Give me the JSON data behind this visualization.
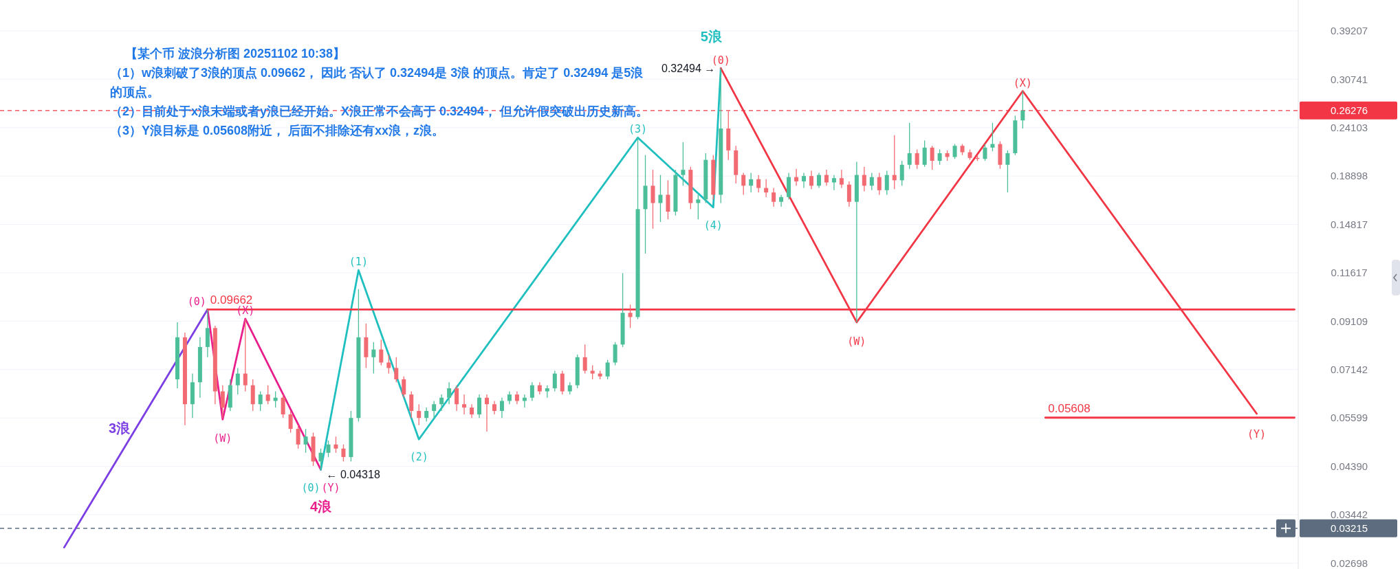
{
  "chart_data": {
    "type": "candlestick",
    "title": "【某个币 波浪分析图 20251102 10:38】",
    "categories": [
      null,
      null,
      null,
      null,
      null,
      null,
      null,
      null,
      null,
      null,
      null,
      null,
      null,
      null,
      null,
      null,
      null,
      null,
      null,
      null,
      null,
      null,
      null,
      null,
      null,
      null,
      null,
      null,
      null,
      null,
      null,
      null,
      null,
      null,
      null,
      null,
      null,
      null,
      null,
      null,
      null,
      null,
      null,
      null,
      null,
      null,
      null,
      null,
      null,
      null,
      null,
      null,
      null,
      null,
      null,
      null,
      null,
      null,
      null,
      null,
      null,
      null,
      null,
      null,
      null,
      null,
      null,
      null,
      null,
      null,
      null,
      null,
      null,
      null,
      null,
      null,
      null,
      null,
      null,
      null,
      null,
      null,
      null,
      null,
      null,
      null,
      null,
      null,
      null,
      null,
      null,
      null,
      null,
      null,
      null,
      null,
      null,
      null,
      null,
      null,
      null,
      null,
      null,
      null,
      null,
      null,
      null,
      null,
      null,
      null,
      null,
      null,
      null,
      null,
      null,
      null,
      null,
      null,
      null,
      null,
      null,
      null,
      null,
      null,
      null,
      null,
      null,
      null,
      null,
      null,
      null,
      null,
      null,
      null,
      null,
      null,
      null,
      null,
      null,
      null,
      null,
      null,
      null,
      null,
      null,
      null,
      null,
      null,
      null,
      null,
      null,
      null,
      null,
      null,
      null,
      null,
      null,
      null,
      null,
      null,
      null,
      null,
      null,
      null,
      null,
      null,
      null,
      null,
      null,
      null,
      null,
      null
    ],
    "ohlc": [
      null,
      null,
      null,
      null,
      null,
      null,
      null,
      null,
      null,
      null,
      null,
      null,
      null,
      null,
      null,
      null,
      null,
      null,
      null,
      null,
      null,
      null,
      null,
      [
        0.068,
        0.0906,
        0.065,
        0.084
      ],
      [
        0.084,
        0.086,
        0.054,
        0.06
      ],
      [
        0.06,
        0.07,
        0.056,
        0.067
      ],
      [
        0.067,
        0.084,
        0.062,
        0.08
      ],
      [
        0.08,
        0.0966,
        0.076,
        0.088
      ],
      [
        0.088,
        0.089,
        0.06,
        0.064
      ],
      [
        0.064,
        0.066,
        0.056,
        0.059
      ],
      [
        0.059,
        0.068,
        0.058,
        0.066
      ],
      [
        0.066,
        0.072,
        0.063,
        0.07
      ],
      [
        0.07,
        0.092,
        0.064,
        0.066
      ],
      [
        0.066,
        0.068,
        0.058,
        0.06
      ],
      [
        0.06,
        0.064,
        0.058,
        0.063
      ],
      [
        0.063,
        0.066,
        0.06,
        0.061
      ],
      [
        0.061,
        0.064,
        0.059,
        0.062
      ],
      [
        0.062,
        0.063,
        0.056,
        0.057
      ],
      [
        0.057,
        0.058,
        0.052,
        0.053
      ],
      [
        0.053,
        0.054,
        0.048,
        0.049
      ],
      [
        0.049,
        0.053,
        0.047,
        0.051
      ],
      [
        0.051,
        0.052,
        0.044,
        0.045
      ],
      [
        0.045,
        0.048,
        0.04318,
        0.047
      ],
      [
        0.047,
        0.05,
        0.046,
        0.049
      ],
      [
        0.049,
        0.051,
        0.047,
        0.048
      ],
      [
        0.048,
        0.049,
        0.045,
        0.046
      ],
      [
        0.046,
        0.058,
        0.045,
        0.056
      ],
      [
        0.056,
        0.107,
        0.055,
        0.084
      ],
      [
        0.084,
        0.09,
        0.072,
        0.076
      ],
      [
        0.076,
        0.082,
        0.07,
        0.079
      ],
      [
        0.079,
        0.083,
        0.073,
        0.074
      ],
      [
        0.074,
        0.077,
        0.07,
        0.072
      ],
      [
        0.072,
        0.076,
        0.067,
        0.068
      ],
      [
        0.068,
        0.069,
        0.062,
        0.063
      ],
      [
        0.063,
        0.064,
        0.056,
        0.058
      ],
      [
        0.058,
        0.06,
        0.054,
        0.056
      ],
      [
        0.056,
        0.059,
        0.055,
        0.058
      ],
      [
        0.058,
        0.061,
        0.056,
        0.06
      ],
      [
        0.06,
        0.063,
        0.058,
        0.062
      ],
      [
        0.062,
        0.067,
        0.06,
        0.065
      ],
      [
        0.065,
        0.066,
        0.058,
        0.06
      ],
      [
        0.06,
        0.063,
        0.057,
        0.059
      ],
      [
        0.059,
        0.06,
        0.056,
        0.057
      ],
      [
        0.057,
        0.063,
        0.056,
        0.062
      ],
      [
        0.062,
        0.063,
        0.0523,
        0.06
      ],
      [
        0.06,
        0.061,
        0.057,
        0.058
      ],
      [
        0.058,
        0.062,
        0.056,
        0.061
      ],
      [
        0.061,
        0.064,
        0.06,
        0.063
      ],
      [
        0.063,
        0.064,
        0.06,
        0.061
      ],
      [
        0.061,
        0.063,
        0.059,
        0.062
      ],
      [
        0.062,
        0.067,
        0.061,
        0.066
      ],
      [
        0.066,
        0.067,
        0.063,
        0.064
      ],
      [
        0.064,
        0.066,
        0.062,
        0.065
      ],
      [
        0.065,
        0.071,
        0.064,
        0.07
      ],
      [
        0.07,
        0.071,
        0.063,
        0.064
      ],
      [
        0.064,
        0.067,
        0.063,
        0.066
      ],
      [
        0.066,
        0.077,
        0.065,
        0.076
      ],
      [
        0.076,
        0.081,
        0.07,
        0.071
      ],
      [
        0.071,
        0.073,
        0.068,
        0.07
      ],
      [
        0.07,
        0.071,
        0.068,
        0.069
      ],
      [
        0.069,
        0.075,
        0.068,
        0.074
      ],
      [
        0.074,
        0.082,
        0.073,
        0.081
      ],
      [
        0.081,
        0.116,
        0.08,
        0.095
      ],
      [
        0.095,
        0.099,
        0.088,
        0.093
      ],
      [
        0.093,
        0.2293,
        0.092,
        0.16
      ],
      [
        0.16,
        0.21,
        0.128,
        0.18
      ],
      [
        0.18,
        0.195,
        0.145,
        0.165
      ],
      [
        0.165,
        0.19,
        0.15,
        0.172
      ],
      [
        0.172,
        0.185,
        0.152,
        0.158
      ],
      [
        0.158,
        0.195,
        0.155,
        0.19
      ],
      [
        0.19,
        0.224,
        0.18,
        0.195
      ],
      [
        0.195,
        0.198,
        0.16,
        0.165
      ],
      [
        0.165,
        0.172,
        0.152,
        0.168
      ],
      [
        0.168,
        0.212,
        0.165,
        0.205
      ],
      [
        0.205,
        0.21,
        0.168,
        0.172
      ],
      [
        0.172,
        0.32494,
        0.165,
        0.24
      ],
      [
        0.24,
        0.262,
        0.205,
        0.215
      ],
      [
        0.215,
        0.22,
        0.182,
        0.19
      ],
      [
        0.19,
        0.192,
        0.172,
        0.18
      ],
      [
        0.18,
        0.192,
        0.174,
        0.186
      ],
      [
        0.186,
        0.19,
        0.174,
        0.178
      ],
      [
        0.178,
        0.186,
        0.17,
        0.174
      ],
      [
        0.174,
        0.178,
        0.162,
        0.166
      ],
      [
        0.166,
        0.172,
        0.162,
        0.17
      ],
      [
        0.17,
        0.192,
        0.168,
        0.188
      ],
      [
        0.188,
        0.196,
        0.18,
        0.184
      ],
      [
        0.184,
        0.192,
        0.178,
        0.189
      ],
      [
        0.189,
        0.194,
        0.177,
        0.18
      ],
      [
        0.18,
        0.192,
        0.178,
        0.19
      ],
      [
        0.19,
        0.195,
        0.18,
        0.183
      ],
      [
        0.183,
        0.19,
        0.176,
        0.187
      ],
      [
        0.187,
        0.195,
        0.178,
        0.181
      ],
      [
        0.181,
        0.184,
        0.162,
        0.166
      ],
      [
        0.166,
        0.203,
        0.0906,
        0.19
      ],
      [
        0.19,
        0.198,
        0.175,
        0.18
      ],
      [
        0.18,
        0.192,
        0.176,
        0.188
      ],
      [
        0.188,
        0.192,
        0.172,
        0.176
      ],
      [
        0.176,
        0.194,
        0.172,
        0.19
      ],
      [
        0.19,
        0.232,
        0.177,
        0.185
      ],
      [
        0.185,
        0.204,
        0.18,
        0.2
      ],
      [
        0.2,
        0.247,
        0.196,
        0.212
      ],
      [
        0.212,
        0.216,
        0.196,
        0.2
      ],
      [
        0.2,
        0.226,
        0.198,
        0.218
      ],
      [
        0.218,
        0.22,
        0.195,
        0.204
      ],
      [
        0.204,
        0.216,
        0.2,
        0.212
      ],
      [
        0.212,
        0.215,
        0.204,
        0.208
      ],
      [
        0.208,
        0.222,
        0.206,
        0.22
      ],
      [
        0.22,
        0.222,
        0.21,
        0.213
      ],
      [
        0.213,
        0.216,
        0.205,
        0.207
      ],
      [
        0.207,
        0.21,
        0.204,
        0.206
      ],
      [
        0.206,
        0.222,
        0.204,
        0.218
      ],
      [
        0.218,
        0.247,
        0.214,
        0.222
      ],
      [
        0.222,
        0.225,
        0.196,
        0.2
      ],
      [
        0.2,
        0.215,
        0.174,
        0.212
      ],
      [
        0.212,
        0.256,
        0.21,
        0.25
      ],
      [
        0.25,
        0.2897,
        0.24,
        0.26276
      ],
      null,
      null,
      null,
      null,
      null,
      null,
      null,
      null,
      null,
      null,
      null,
      null,
      null,
      null,
      null,
      null,
      null,
      null,
      null,
      null,
      null,
      null,
      null,
      null,
      null,
      null,
      null,
      null,
      null,
      null,
      null,
      null,
      null,
      null,
      null,
      null
    ],
    "series": [
      {
        "type": "line",
        "color": "#7b3fe4",
        "values": [
          null,
          null,
          null,
          null,
          null,
          null,
          null,
          null,
          0.0292,
          null,
          null,
          null,
          null,
          null,
          null,
          null,
          null,
          null,
          null,
          null,
          null,
          null,
          null,
          null,
          null,
          null,
          null,
          0.09662,
          null,
          null,
          null,
          null,
          null,
          null,
          null,
          null,
          null,
          null,
          null,
          null,
          null,
          null,
          null,
          null,
          null,
          null,
          null,
          null,
          null,
          null,
          null,
          null,
          null,
          null,
          null,
          null,
          null,
          null,
          null,
          null,
          null,
          null,
          null,
          null,
          null,
          null,
          null,
          null,
          null,
          null,
          null,
          null,
          null,
          null,
          null,
          null,
          null,
          null,
          null,
          null,
          null,
          null,
          null,
          null,
          null,
          null,
          null,
          null,
          null,
          null,
          null,
          null,
          null,
          null,
          null,
          null,
          null,
          null,
          null,
          null,
          null,
          null,
          null,
          null,
          null,
          null,
          null,
          null,
          null,
          null,
          null,
          null,
          null,
          null,
          null,
          null,
          null,
          null,
          null,
          null,
          null,
          null,
          null,
          null,
          null,
          null,
          null,
          null,
          null,
          null,
          null,
          null,
          null,
          null,
          null,
          null,
          null,
          null,
          null,
          null,
          null,
          null,
          null,
          null,
          null,
          null,
          null,
          null,
          null,
          null,
          null,
          null,
          null,
          null,
          null,
          null,
          null,
          null,
          null,
          null,
          null,
          null,
          null,
          null,
          null,
          null,
          null,
          null,
          null,
          null,
          null,
          null
        ]
      },
      {
        "type": "line",
        "color": "#e91e8c",
        "values": [
          null,
          null,
          null,
          null,
          null,
          null,
          null,
          null,
          null,
          null,
          null,
          null,
          null,
          null,
          null,
          null,
          null,
          null,
          null,
          null,
          null,
          null,
          null,
          null,
          null,
          null,
          null,
          0.09662,
          null,
          0.0556,
          null,
          null,
          0.0922,
          null,
          null,
          null,
          null,
          null,
          null,
          null,
          null,
          null,
          0.04318,
          null,
          null,
          null,
          null,
          null,
          null,
          null,
          null,
          null,
          null,
          null,
          null,
          null,
          null,
          null,
          null,
          null,
          null,
          null,
          null,
          null,
          null,
          null,
          null,
          null,
          null,
          null,
          null,
          null,
          null,
          null,
          null,
          null,
          null,
          null,
          null,
          null,
          null,
          null,
          null,
          null,
          null,
          null,
          null,
          null,
          null,
          null,
          null,
          null,
          null,
          null,
          null,
          null,
          null,
          null,
          null,
          null,
          null,
          null,
          null,
          null,
          null,
          null,
          null,
          null,
          null,
          null,
          null,
          null,
          null,
          null,
          null,
          null,
          null,
          null,
          null,
          null,
          null,
          null,
          null,
          null,
          null,
          null,
          null,
          null,
          null,
          null,
          null,
          null,
          null,
          null,
          null,
          null,
          null,
          null,
          null,
          null,
          null,
          null,
          null,
          null,
          null,
          null,
          null,
          null,
          null,
          null,
          null,
          null,
          null,
          null,
          null,
          null,
          null,
          null,
          null,
          null,
          null,
          null,
          null,
          null,
          null,
          null,
          null,
          null,
          null,
          null,
          null,
          null
        ]
      },
      {
        "type": "line",
        "color": "#1fbfbf",
        "values": [
          null,
          null,
          null,
          null,
          null,
          null,
          null,
          null,
          null,
          null,
          null,
          null,
          null,
          null,
          null,
          null,
          null,
          null,
          null,
          null,
          null,
          null,
          null,
          null,
          null,
          null,
          null,
          null,
          null,
          null,
          null,
          null,
          null,
          null,
          null,
          null,
          null,
          null,
          null,
          null,
          null,
          null,
          0.04318,
          null,
          null,
          null,
          null,
          0.1177,
          null,
          null,
          null,
          null,
          null,
          null,
          null,
          0.0503,
          null,
          null,
          null,
          null,
          null,
          null,
          null,
          null,
          null,
          null,
          null,
          null,
          null,
          null,
          null,
          null,
          null,
          null,
          null,
          null,
          null,
          null,
          null,
          null,
          null,
          null,
          null,
          null,
          0.2293,
          null,
          null,
          null,
          null,
          null,
          null,
          null,
          null,
          null,
          0.1615,
          0.32494,
          null,
          null,
          null,
          null,
          null,
          null,
          null,
          null,
          null,
          null,
          null,
          null,
          null,
          null,
          null,
          null,
          null,
          null,
          null,
          null,
          null,
          null,
          null,
          null,
          null,
          null,
          null,
          null,
          null,
          null,
          null,
          null,
          null,
          null,
          null,
          null,
          null,
          null,
          null,
          null,
          null,
          null,
          null,
          null,
          null,
          null,
          null,
          null,
          null,
          null,
          null,
          null,
          null,
          null,
          null,
          null,
          null,
          null,
          null,
          null,
          null,
          null,
          null,
          null,
          null,
          null,
          null,
          null,
          null,
          null,
          null,
          null,
          null,
          null,
          null,
          null
        ]
      },
      {
        "type": "line",
        "color": "#f23645",
        "values": [
          null,
          null,
          null,
          null,
          null,
          null,
          null,
          null,
          null,
          null,
          null,
          null,
          null,
          null,
          null,
          null,
          null,
          null,
          null,
          null,
          null,
          null,
          null,
          null,
          null,
          null,
          null,
          null,
          null,
          null,
          null,
          null,
          null,
          null,
          null,
          null,
          null,
          null,
          null,
          null,
          null,
          null,
          null,
          null,
          null,
          null,
          null,
          null,
          null,
          null,
          null,
          null,
          null,
          null,
          null,
          null,
          null,
          null,
          null,
          null,
          null,
          null,
          null,
          null,
          null,
          null,
          null,
          null,
          null,
          null,
          null,
          null,
          null,
          null,
          null,
          null,
          null,
          null,
          null,
          null,
          null,
          null,
          null,
          null,
          null,
          null,
          null,
          null,
          null,
          null,
          null,
          null,
          null,
          null,
          null,
          0.32494,
          null,
          null,
          null,
          null,
          null,
          null,
          null,
          null,
          null,
          null,
          null,
          null,
          null,
          null,
          null,
          null,
          null,
          0.0906,
          null,
          null,
          null,
          null,
          null,
          null,
          null,
          null,
          null,
          null,
          null,
          null,
          null,
          null,
          null,
          null,
          null,
          null,
          null,
          null,
          null,
          0.2897,
          null,
          null,
          null,
          null,
          null,
          null,
          null,
          null,
          null,
          null,
          null,
          null,
          null,
          null,
          null,
          null,
          null,
          null,
          null,
          null,
          null,
          null,
          null,
          null,
          null,
          null,
          null,
          null,
          null,
          null,
          0.0572,
          null,
          null,
          null,
          null,
          null
        ]
      },
      {
        "type": "line",
        "color": "#f23645",
        "values": [
          null,
          null,
          null,
          null,
          null,
          null,
          null,
          null,
          null,
          null,
          null,
          null,
          null,
          null,
          null,
          null,
          null,
          null,
          null,
          null,
          null,
          null,
          null,
          null,
          null,
          null,
          null,
          0.09662,
          null,
          null,
          null,
          null,
          null,
          null,
          null,
          null,
          null,
          null,
          null,
          null,
          null,
          null,
          null,
          null,
          null,
          null,
          null,
          null,
          null,
          null,
          null,
          null,
          null,
          null,
          null,
          null,
          null,
          null,
          null,
          null,
          null,
          null,
          null,
          null,
          null,
          null,
          null,
          null,
          null,
          null,
          null,
          null,
          null,
          null,
          null,
          null,
          null,
          null,
          null,
          null,
          null,
          null,
          null,
          null,
          null,
          null,
          null,
          null,
          null,
          null,
          null,
          null,
          null,
          null,
          null,
          null,
          null,
          null,
          null,
          null,
          null,
          null,
          null,
          null,
          null,
          null,
          null,
          null,
          null,
          null,
          null,
          null,
          null,
          null,
          null,
          null,
          null,
          null,
          null,
          null,
          null,
          null,
          null,
          null,
          null,
          null,
          null,
          null,
          null,
          null,
          null,
          null,
          null,
          null,
          null,
          null,
          null,
          null,
          null,
          null,
          null,
          null,
          null,
          null,
          null,
          null,
          null,
          null,
          null,
          null,
          null,
          null,
          null,
          null,
          null,
          null,
          null,
          null,
          null,
          null,
          null,
          null,
          null,
          null,
          null,
          null,
          null,
          null,
          null,
          null,
          null,
          0.09662
        ]
      },
      {
        "type": "line",
        "color": "#f23645",
        "values": [
          null,
          null,
          null,
          null,
          null,
          null,
          null,
          null,
          null,
          null,
          null,
          null,
          null,
          null,
          null,
          null,
          null,
          null,
          null,
          null,
          null,
          null,
          null,
          null,
          null,
          null,
          null,
          null,
          null,
          null,
          null,
          null,
          null,
          null,
          null,
          null,
          null,
          null,
          null,
          null,
          null,
          null,
          null,
          null,
          null,
          null,
          null,
          null,
          null,
          null,
          null,
          null,
          null,
          null,
          null,
          null,
          null,
          null,
          null,
          null,
          null,
          null,
          null,
          null,
          null,
          null,
          null,
          null,
          null,
          null,
          null,
          null,
          null,
          null,
          null,
          null,
          null,
          null,
          null,
          null,
          null,
          null,
          null,
          null,
          null,
          null,
          null,
          null,
          null,
          null,
          null,
          null,
          null,
          null,
          null,
          null,
          null,
          null,
          null,
          null,
          null,
          null,
          null,
          null,
          null,
          null,
          null,
          null,
          null,
          null,
          null,
          null,
          null,
          null,
          null,
          null,
          null,
          null,
          null,
          null,
          null,
          null,
          null,
          null,
          null,
          null,
          null,
          null,
          null,
          null,
          null,
          null,
          null,
          null,
          null,
          null,
          null,
          null,
          0.05608,
          null,
          null,
          null,
          null,
          null,
          null,
          null,
          null,
          null,
          null,
          null,
          null,
          null,
          null,
          null,
          null,
          null,
          null,
          null,
          null,
          null,
          null,
          null,
          null,
          null,
          null,
          null,
          null,
          null,
          null,
          null,
          null,
          0.05608
        ]
      }
    ],
    "ylim": [
      0.0262,
      0.458
    ],
    "log": true,
    "yticks": [
      0.02698,
      0.03442,
      {
        "value": 0.0439,
        "label": "0.04390"
      },
      0.05599,
      0.07142,
      0.09109,
      0.11617,
      0.14817,
      0.18898,
      0.24103,
      0.30741,
      0.39207
    ],
    "tick_labels": "y",
    "grid": "y",
    "ref_lines": [
      {
        "axis": "y",
        "value": 0.26276,
        "label": "0.26276",
        "color": "#f23645",
        "line_style": "dashed"
      },
      {
        "axis": "y",
        "value": 0.03215,
        "label": "0.03215",
        "color": "#5d6c7e",
        "line_style": "dashed"
      }
    ],
    "annotations": [
      "（1）w浪刺破了3浪的顶点 0.09662， 因此 否认了 0.32494是 3浪 的顶点。肯定了 0.32494 是5浪的顶点。",
      "（2）目前处于x浪末端或者y浪已经开始。X浪正常不会高于 0.32494， 但允许假突破出历史新高。",
      "（3）Y浪目标是 0.05608附近， 后面不排除还有xx浪，z浪。",
      "3浪",
      "(0)",
      {
        "text": "0.09662",
        "y": 0.09662
      },
      {
        "text": "(W)",
        "y": 0.0556
      },
      {
        "text": "(X)",
        "y": 0.0922
      },
      "(0)",
      "(Y)",
      {
        "text": "4浪",
        "y": 0.04318
      },
      "← 0.04318",
      {
        "text": "(1)",
        "y": 0.1177
      },
      {
        "text": "(2)",
        "y": 0.0503
      },
      {
        "text": "(3)",
        "y": 0.2293
      },
      {
        "text": "(4)",
        "y": 0.1615
      },
      "5浪",
      "0.32494 →",
      {
        "text": "(0)",
        "y": 0.32494
      },
      {
        "text": "(W)",
        "y": 0.0906
      },
      {
        "text": "(X)",
        "y": 0.2897
      },
      {
        "text": "(Y)",
        "y": 0.0572
      },
      {
        "text": "0.05608",
        "y": 0.05608
      }
    ]
  }
}
